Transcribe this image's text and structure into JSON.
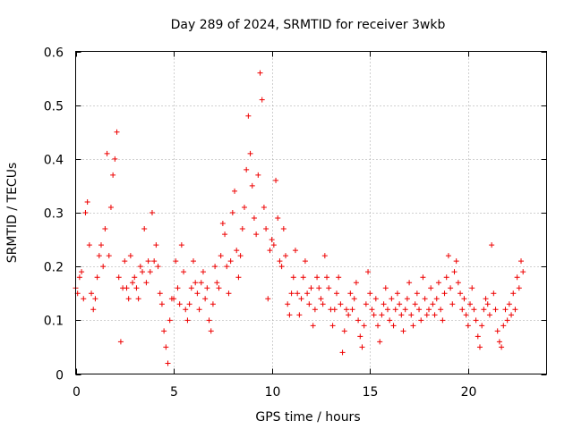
{
  "chart_data": {
    "type": "scatter",
    "title": "Day 289 of 2024, SRMTID for receiver 3wkb",
    "xlabel": "GPS time / hours",
    "ylabel": "SRMTID / TECUs",
    "xlim": [
      0,
      24
    ],
    "ylim": [
      0,
      0.6
    ],
    "xticks": [
      0,
      5,
      10,
      15,
      20
    ],
    "xtick_labels": [
      "0",
      "5",
      "10",
      "15",
      "20"
    ],
    "yticks": [
      0,
      0.1,
      0.2,
      0.3,
      0.4,
      0.5,
      0.6
    ],
    "ytick_labels": [
      "0",
      "0.1",
      "0.2",
      "0.3",
      "0.4",
      "0.5",
      "0.6"
    ],
    "grid": true,
    "marker": "plus",
    "color": "#ee0000",
    "series": [
      {
        "name": "SRMTID",
        "x": [
          0.0,
          0.1,
          0.2,
          0.3,
          0.4,
          0.5,
          0.6,
          0.7,
          0.8,
          0.9,
          1.0,
          1.1,
          1.2,
          1.3,
          1.4,
          1.5,
          1.6,
          1.7,
          1.8,
          1.9,
          2.0,
          2.1,
          2.2,
          2.3,
          2.4,
          2.5,
          2.6,
          2.7,
          2.8,
          2.9,
          3.0,
          3.1,
          3.2,
          3.3,
          3.4,
          3.5,
          3.6,
          3.7,
          3.8,
          3.9,
          4.0,
          4.1,
          4.2,
          4.3,
          4.4,
          4.5,
          4.6,
          4.7,
          4.8,
          4.9,
          5.0,
          5.1,
          5.2,
          5.3,
          5.4,
          5.5,
          5.6,
          5.7,
          5.8,
          5.9,
          6.0,
          6.1,
          6.2,
          6.3,
          6.4,
          6.5,
          6.6,
          6.7,
          6.8,
          6.9,
          7.0,
          7.1,
          7.2,
          7.3,
          7.4,
          7.5,
          7.6,
          7.7,
          7.8,
          7.9,
          8.0,
          8.1,
          8.2,
          8.3,
          8.4,
          8.5,
          8.6,
          8.7,
          8.8,
          8.9,
          9.0,
          9.1,
          9.2,
          9.3,
          9.4,
          9.5,
          9.6,
          9.7,
          9.8,
          9.9,
          10.0,
          10.1,
          10.2,
          10.3,
          10.4,
          10.5,
          10.6,
          10.7,
          10.8,
          10.9,
          11.0,
          11.1,
          11.2,
          11.3,
          11.4,
          11.5,
          11.6,
          11.7,
          11.8,
          11.9,
          12.0,
          12.1,
          12.2,
          12.3,
          12.4,
          12.5,
          12.6,
          12.7,
          12.8,
          12.9,
          13.0,
          13.1,
          13.2,
          13.3,
          13.4,
          13.5,
          13.6,
          13.7,
          13.8,
          13.9,
          14.0,
          14.1,
          14.2,
          14.3,
          14.4,
          14.5,
          14.6,
          14.7,
          14.8,
          14.9,
          15.0,
          15.1,
          15.2,
          15.3,
          15.4,
          15.5,
          15.6,
          15.7,
          15.8,
          15.9,
          16.0,
          16.1,
          16.2,
          16.3,
          16.4,
          16.5,
          16.6,
          16.7,
          16.8,
          16.9,
          17.0,
          17.1,
          17.2,
          17.3,
          17.4,
          17.5,
          17.6,
          17.7,
          17.8,
          17.9,
          18.0,
          18.1,
          18.2,
          18.3,
          18.4,
          18.5,
          18.6,
          18.7,
          18.8,
          18.9,
          19.0,
          19.1,
          19.2,
          19.3,
          19.4,
          19.5,
          19.6,
          19.7,
          19.8,
          19.9,
          20.0,
          20.1,
          20.2,
          20.3,
          20.4,
          20.5,
          20.6,
          20.7,
          20.8,
          20.9,
          21.0,
          21.1,
          21.2,
          21.3,
          21.4,
          21.5,
          21.6,
          21.7,
          21.8,
          21.9,
          22.0,
          22.1,
          22.2,
          22.3,
          22.4,
          22.5,
          22.6,
          22.7,
          22.8
        ],
        "y": [
          0.16,
          0.15,
          0.18,
          0.19,
          0.14,
          0.3,
          0.32,
          0.24,
          0.15,
          0.12,
          0.14,
          0.18,
          0.22,
          0.24,
          0.2,
          0.27,
          0.41,
          0.22,
          0.31,
          0.37,
          0.4,
          0.45,
          0.18,
          0.06,
          0.16,
          0.21,
          0.16,
          0.14,
          0.22,
          0.17,
          0.18,
          0.16,
          0.14,
          0.2,
          0.19,
          0.27,
          0.17,
          0.21,
          0.19,
          0.3,
          0.21,
          0.24,
          0.2,
          0.15,
          0.13,
          0.08,
          0.05,
          0.02,
          0.1,
          0.14,
          0.14,
          0.21,
          0.16,
          0.13,
          0.24,
          0.19,
          0.12,
          0.1,
          0.13,
          0.16,
          0.21,
          0.17,
          0.15,
          0.12,
          0.17,
          0.19,
          0.14,
          0.16,
          0.1,
          0.08,
          0.13,
          0.2,
          0.17,
          0.16,
          0.22,
          0.28,
          0.26,
          0.2,
          0.15,
          0.21,
          0.3,
          0.34,
          0.23,
          0.18,
          0.22,
          0.27,
          0.31,
          0.38,
          0.48,
          0.41,
          0.35,
          0.29,
          0.26,
          0.37,
          0.56,
          0.51,
          0.31,
          0.27,
          0.14,
          0.23,
          0.25,
          0.24,
          0.36,
          0.29,
          0.21,
          0.2,
          0.27,
          0.22,
          0.13,
          0.11,
          0.15,
          0.18,
          0.23,
          0.15,
          0.11,
          0.14,
          0.18,
          0.21,
          0.15,
          0.13,
          0.16,
          0.09,
          0.12,
          0.18,
          0.16,
          0.14,
          0.13,
          0.22,
          0.18,
          0.16,
          0.12,
          0.09,
          0.12,
          0.15,
          0.18,
          0.13,
          0.04,
          0.08,
          0.12,
          0.11,
          0.15,
          0.12,
          0.14,
          0.17,
          0.1,
          0.07,
          0.05,
          0.09,
          0.13,
          0.19,
          0.15,
          0.12,
          0.11,
          0.14,
          0.09,
          0.06,
          0.11,
          0.13,
          0.16,
          0.12,
          0.1,
          0.14,
          0.09,
          0.12,
          0.15,
          0.13,
          0.11,
          0.08,
          0.12,
          0.14,
          0.17,
          0.11,
          0.09,
          0.13,
          0.15,
          0.12,
          0.1,
          0.18,
          0.14,
          0.11,
          0.12,
          0.16,
          0.13,
          0.11,
          0.14,
          0.17,
          0.12,
          0.1,
          0.15,
          0.18,
          0.22,
          0.16,
          0.13,
          0.19,
          0.21,
          0.17,
          0.15,
          0.12,
          0.14,
          0.11,
          0.09,
          0.13,
          0.16,
          0.12,
          0.1,
          0.07,
          0.05,
          0.09,
          0.12,
          0.14,
          0.13,
          0.11,
          0.24,
          0.15,
          0.12,
          0.08,
          0.06,
          0.05,
          0.09,
          0.12,
          0.1,
          0.13,
          0.11,
          0.15,
          0.12,
          0.18,
          0.16,
          0.21,
          0.19
        ]
      }
    ]
  }
}
